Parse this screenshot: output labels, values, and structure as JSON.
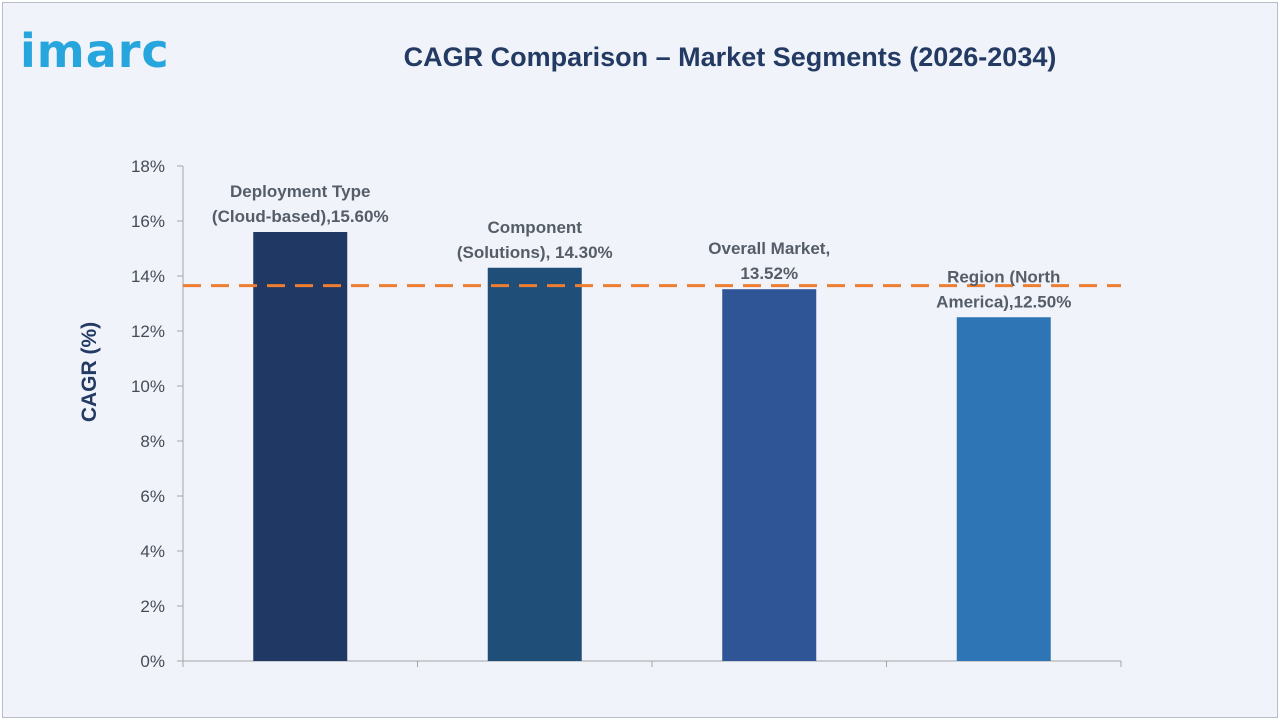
{
  "header": {
    "logo_text": "imarc",
    "title": "CAGR Comparison – Market Segments (2026-2034)"
  },
  "chart_data": {
    "type": "bar",
    "categories": [
      "Deployment Type (Cloud-based)",
      "Component (Solutions)",
      "Overall Market",
      "Region (North America)"
    ],
    "values": [
      15.6,
      14.3,
      13.52,
      12.5
    ],
    "data_labels": [
      [
        "Deployment Type",
        "(Cloud-based),15.60%"
      ],
      [
        "Component",
        "(Solutions), 14.30%"
      ],
      [
        "Overall Market,",
        "13.52%"
      ],
      [
        "Region (North",
        "America),12.50%"
      ]
    ],
    "bar_colors": [
      "#1f3864",
      "#1f4e79",
      "#2f5597",
      "#2e75b6"
    ],
    "ylabel": "CAGR (%)",
    "ylim": [
      0,
      18
    ],
    "yticks": [
      0,
      2,
      4,
      6,
      8,
      10,
      12,
      14,
      16,
      18
    ],
    "ytick_labels": [
      "0%",
      "2%",
      "4%",
      "6%",
      "8%",
      "10%",
      "12%",
      "14%",
      "16%",
      "18%"
    ],
    "reference_line": {
      "value": 13.65,
      "style": "dashed",
      "color": "#ed7d31"
    },
    "grid": false,
    "legend": false
  }
}
